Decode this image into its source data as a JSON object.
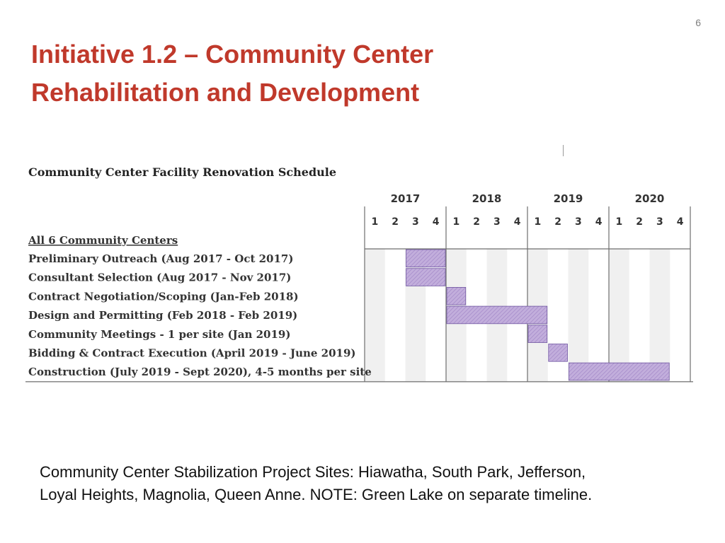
{
  "page_number": "6",
  "title": {
    "line1": "Initiative 1.2 – Community Center",
    "line2": "Rehabilitation and Development"
  },
  "footer": {
    "line1": "Community Center Stabilization Project Sites: Hiawatha, South Park, Jefferson,",
    "line2": "Loyal Heights, Magnolia, Queen Anne.  NOTE: Green Lake on separate timeline."
  },
  "colors": {
    "title": "#c0392b",
    "bar_fill": "#b9a3d6",
    "bar_stroke": "#6f55a0",
    "shade_column": "#f0f0f0",
    "divider": "#6e6e6e"
  },
  "chart_data": {
    "type": "gantt",
    "title": "Community Center Facility Renovation Schedule",
    "years": [
      "2017",
      "2018",
      "2019",
      "2020"
    ],
    "quarters": [
      "1",
      "2",
      "3",
      "4"
    ],
    "group_label": "All 6 Community Centers",
    "timeline_start": "2017-Q1",
    "timeline_end": "2020-Q4",
    "tasks": [
      {
        "label": "Preliminary Outreach (Aug 2017 - Oct 2017)",
        "start": "2017-Q3",
        "end": "2017-Q4"
      },
      {
        "label": "Consultant Selection (Aug 2017 - Nov 2017)",
        "start": "2017-Q3",
        "end": "2017-Q4"
      },
      {
        "label": "Contract Negotiation/Scoping (Jan-Feb 2018)",
        "start": "2018-Q1",
        "end": "2018-Q1"
      },
      {
        "label": "Design and Permitting (Feb 2018 - Feb 2019)",
        "start": "2018-Q1",
        "end": "2019-Q1"
      },
      {
        "label": "Community Meetings - 1 per site (Jan 2019)",
        "start": "2019-Q1",
        "end": "2019-Q1"
      },
      {
        "label": "Bidding & Contract Execution (April 2019 - June 2019)",
        "start": "2019-Q2",
        "end": "2019-Q2"
      },
      {
        "label": "Construction (July 2019 - Sept 2020), 4-5 months per site",
        "start": "2019-Q3",
        "end": "2020-Q3"
      }
    ],
    "grid": true
  }
}
